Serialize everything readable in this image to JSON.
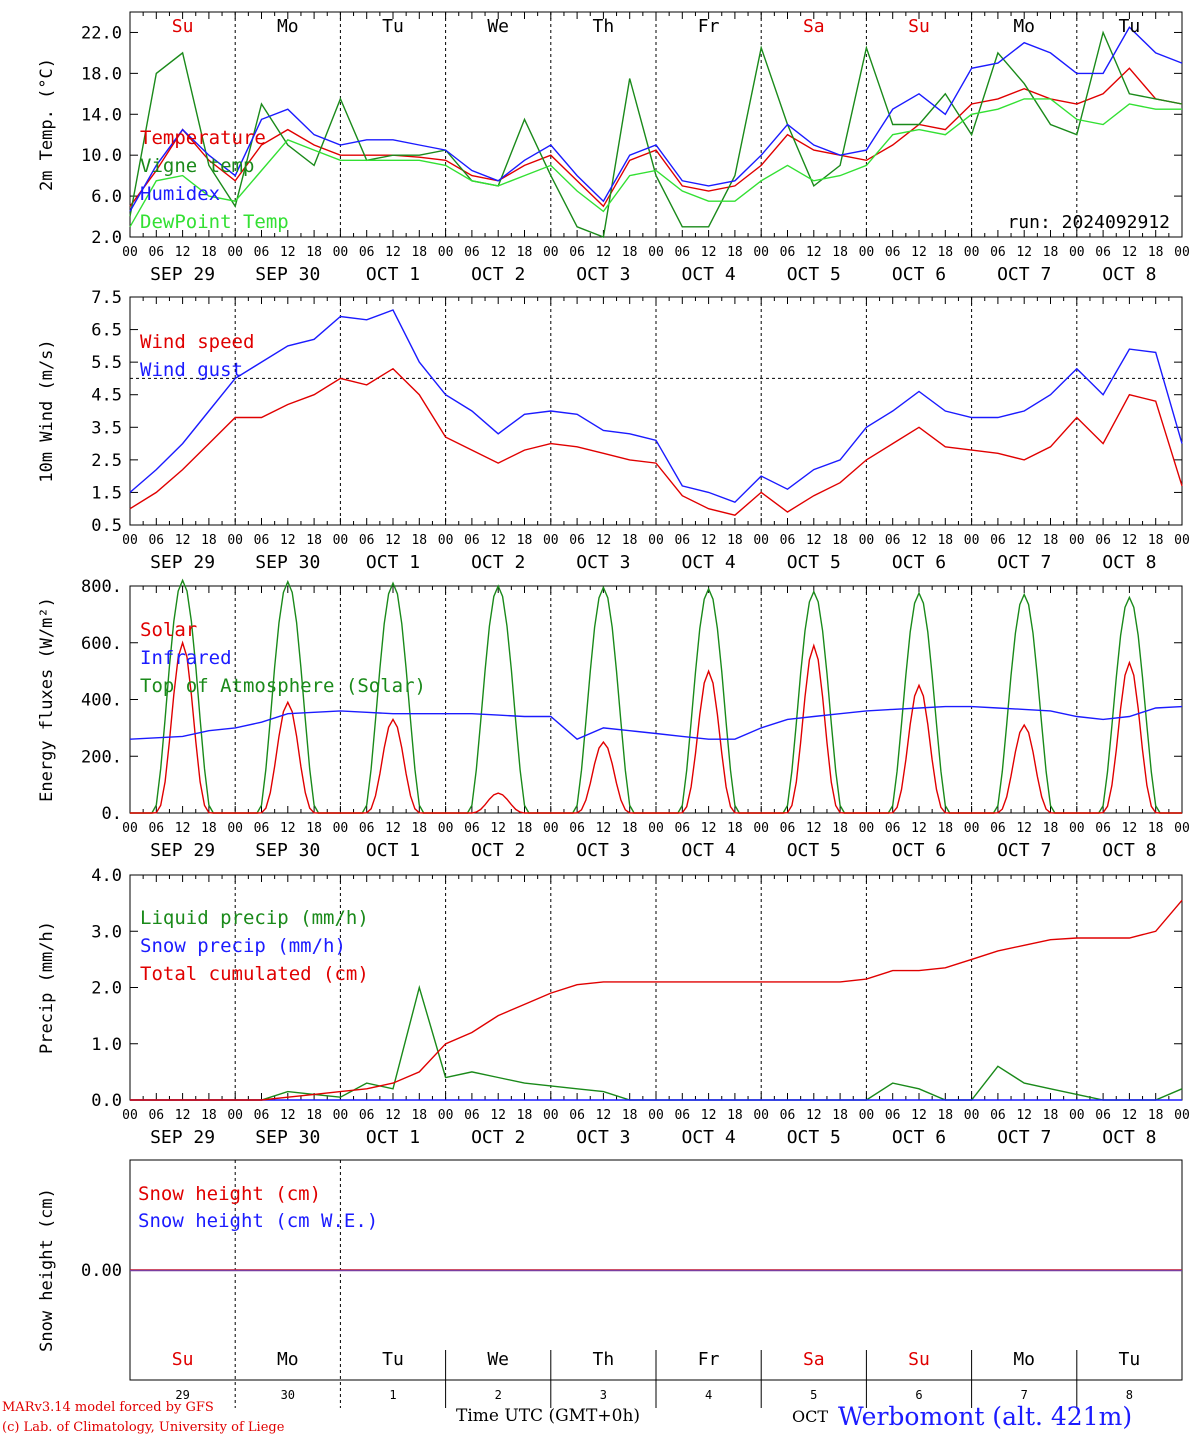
{
  "chart_data": [
    {
      "type": "line",
      "ylabel": "2m Temp. (°C)",
      "ylim": [
        2.0,
        24.0
      ],
      "yticks": [
        "2.0",
        "6.0",
        "10.0",
        "14.0",
        "18.0",
        "22.0"
      ],
      "annotation": "run: 2024092912",
      "day_labels": [
        {
          "text": "Su",
          "color": "#e00000"
        },
        {
          "text": "Mo",
          "color": "#000000"
        },
        {
          "text": "Tu",
          "color": "#000000"
        },
        {
          "text": "We",
          "color": "#000000"
        },
        {
          "text": "Th",
          "color": "#000000"
        },
        {
          "text": "Fr",
          "color": "#000000"
        },
        {
          "text": "Sa",
          "color": "#e00000"
        },
        {
          "text": "Su",
          "color": "#e00000"
        },
        {
          "text": "Mo",
          "color": "#000000"
        },
        {
          "text": "Tu",
          "color": "#000000"
        }
      ],
      "x_hours": [
        0,
        6,
        12,
        18,
        24,
        30,
        36,
        42,
        48,
        54,
        60,
        66,
        72,
        78,
        84,
        90,
        96,
        102,
        108,
        114,
        120,
        126,
        132,
        138,
        144,
        150,
        156,
        162,
        168,
        174,
        180,
        186,
        192,
        198,
        204,
        210,
        216,
        222,
        228,
        234,
        240
      ],
      "series": [
        {
          "name": "Temperature",
          "color": "#e00000",
          "values": [
            5.0,
            8.5,
            12.5,
            9.5,
            7.5,
            11.0,
            12.5,
            11.0,
            10.0,
            10.0,
            10.0,
            9.8,
            9.5,
            8.0,
            7.5,
            9.0,
            10.0,
            7.5,
            5.0,
            9.5,
            10.5,
            7.0,
            6.5,
            7.0,
            9.0,
            12.0,
            10.5,
            10.0,
            9.5,
            11.0,
            13.0,
            12.5,
            15.0,
            15.5,
            16.5,
            15.5,
            15.0,
            16.0,
            18.5,
            15.5,
            15.0
          ]
        },
        {
          "name": "Vigne temp",
          "color": "#1a8a1a",
          "values": [
            4.0,
            18.0,
            20.0,
            9.0,
            5.0,
            15.0,
            11.0,
            9.0,
            15.5,
            9.5,
            10.0,
            10.0,
            10.5,
            7.5,
            7.0,
            13.5,
            8.0,
            3.0,
            2.0,
            17.5,
            8.0,
            3.0,
            3.0,
            8.0,
            20.5,
            13.0,
            7.0,
            9.0,
            20.5,
            13.0,
            13.0,
            16.0,
            12.0,
            20.0,
            17.0,
            13.0,
            12.0,
            22.0,
            16.0,
            15.5,
            15.0
          ]
        },
        {
          "name": "Humidex",
          "color": "#1b1bff",
          "values": [
            4.5,
            9.0,
            12.5,
            10.0,
            8.0,
            13.5,
            14.5,
            12.0,
            11.0,
            11.5,
            11.5,
            11.0,
            10.5,
            8.5,
            7.5,
            9.5,
            11.0,
            8.0,
            5.5,
            10.0,
            11.0,
            7.5,
            7.0,
            7.5,
            10.0,
            13.0,
            11.0,
            10.0,
            10.5,
            14.5,
            16.0,
            14.0,
            18.5,
            19.0,
            21.0,
            20.0,
            18.0,
            18.0,
            22.5,
            20.0,
            19.0
          ]
        },
        {
          "name": "DewPoint Temp",
          "color": "#33e033",
          "values": [
            3.0,
            7.5,
            8.0,
            6.0,
            5.5,
            8.5,
            11.5,
            10.5,
            9.5,
            9.5,
            9.5,
            9.5,
            9.0,
            7.5,
            7.0,
            8.0,
            9.0,
            6.5,
            4.5,
            8.0,
            8.5,
            6.5,
            5.5,
            5.5,
            7.5,
            9.0,
            7.5,
            8.0,
            9.0,
            12.0,
            12.5,
            12.0,
            14.0,
            14.5,
            15.5,
            15.5,
            13.5,
            13.0,
            15.0,
            14.5,
            14.5
          ]
        }
      ],
      "legend_placement": "left"
    },
    {
      "type": "line",
      "ylabel": "10m Wind (m/s)",
      "ylim": [
        0.5,
        7.5
      ],
      "yticks": [
        "0.5",
        "1.5",
        "2.5",
        "3.5",
        "4.5",
        "5.5",
        "6.5",
        "7.5"
      ],
      "reference_line": 5.0,
      "x_hours": [
        0,
        6,
        12,
        18,
        24,
        30,
        36,
        42,
        48,
        54,
        60,
        66,
        72,
        78,
        84,
        90,
        96,
        102,
        108,
        114,
        120,
        126,
        132,
        138,
        144,
        150,
        156,
        162,
        168,
        174,
        180,
        186,
        192,
        198,
        204,
        210,
        216,
        222,
        228,
        234,
        240
      ],
      "series": [
        {
          "name": "Wind speed",
          "color": "#e00000",
          "values": [
            1.0,
            1.5,
            2.2,
            3.0,
            3.8,
            3.8,
            4.2,
            4.5,
            5.0,
            4.8,
            5.3,
            4.5,
            3.2,
            2.8,
            2.4,
            2.8,
            3.0,
            2.9,
            2.7,
            2.5,
            2.4,
            1.4,
            1.0,
            0.8,
            1.5,
            0.9,
            1.4,
            1.8,
            2.5,
            3.0,
            3.5,
            2.9,
            2.8,
            2.7,
            2.5,
            2.9,
            3.8,
            3.0,
            4.5,
            4.3,
            1.7
          ]
        },
        {
          "name": "Wind gust",
          "color": "#1b1bff",
          "values": [
            1.5,
            2.2,
            3.0,
            4.0,
            5.0,
            5.5,
            6.0,
            6.2,
            6.9,
            6.8,
            7.1,
            5.5,
            4.5,
            4.0,
            3.3,
            3.9,
            4.0,
            3.9,
            3.4,
            3.3,
            3.1,
            1.7,
            1.5,
            1.2,
            2.0,
            1.6,
            2.2,
            2.5,
            3.5,
            4.0,
            4.6,
            4.0,
            3.8,
            3.8,
            4.0,
            4.5,
            5.3,
            4.5,
            5.9,
            5.8,
            3.0
          ]
        }
      ],
      "legend_placement": "top-left"
    },
    {
      "type": "line",
      "ylabel": "Energy fluxes (W/m²)",
      "ylim": [
        0,
        800
      ],
      "yticks": [
        "0.",
        "200.",
        "400.",
        "600.",
        "800."
      ],
      "legend_placement": "top-left",
      "series": [
        {
          "name": "Solar",
          "color": "#e00000",
          "daily_peak": [
            600,
            390,
            330,
            70,
            250,
            500,
            590,
            450,
            310,
            530
          ]
        },
        {
          "name": "Infrared",
          "color": "#1b1bff",
          "values": [
            260,
            265,
            270,
            290,
            300,
            320,
            350,
            355,
            360,
            355,
            350,
            350,
            350,
            350,
            345,
            340,
            340,
            260,
            300,
            290,
            280,
            270,
            260,
            260,
            300,
            330,
            340,
            350,
            360,
            365,
            370,
            375,
            375,
            370,
            365,
            360,
            340,
            330,
            340,
            370,
            375
          ]
        },
        {
          "name": "Top of Atmosphere (Solar)",
          "color": "#1a8a1a",
          "daily_peak": [
            820,
            815,
            810,
            800,
            795,
            790,
            780,
            775,
            770,
            760
          ]
        }
      ]
    },
    {
      "type": "line",
      "ylabel": "Precip (mm/h)",
      "ylim": [
        0.0,
        4.0
      ],
      "yticks": [
        "0.0",
        "1.0",
        "2.0",
        "3.0",
        "4.0"
      ],
      "x_hours": [
        0,
        6,
        12,
        18,
        24,
        30,
        36,
        42,
        48,
        54,
        60,
        66,
        72,
        78,
        84,
        90,
        96,
        102,
        108,
        114,
        120,
        126,
        132,
        138,
        144,
        150,
        156,
        162,
        168,
        174,
        180,
        186,
        192,
        198,
        204,
        210,
        216,
        222,
        228,
        234,
        240
      ],
      "series": [
        {
          "name": "Liquid precip (mm/h)",
          "color": "#1a8a1a",
          "values": [
            0,
            0,
            0,
            0,
            0,
            0,
            0.15,
            0.1,
            0.05,
            0.3,
            0.2,
            2.0,
            0.4,
            0.5,
            0.4,
            0.3,
            0.25,
            0.2,
            0.15,
            0.0,
            0,
            0,
            0,
            0,
            0,
            0,
            0,
            0,
            0,
            0.3,
            0.2,
            0,
            0,
            0.6,
            0.3,
            0.2,
            0.1,
            0,
            0,
            0,
            0.2
          ]
        },
        {
          "name": "Snow precip (mm/h)",
          "color": "#1b1bff",
          "values": [
            0,
            0,
            0,
            0,
            0,
            0,
            0,
            0,
            0,
            0,
            0,
            0,
            0,
            0,
            0,
            0,
            0,
            0,
            0,
            0,
            0,
            0,
            0,
            0,
            0,
            0,
            0,
            0,
            0,
            0,
            0,
            0,
            0,
            0,
            0,
            0,
            0,
            0,
            0,
            0,
            0
          ]
        },
        {
          "name": "Total cumulated (cm)",
          "color": "#e00000",
          "values": [
            0,
            0,
            0,
            0,
            0,
            0,
            0.05,
            0.1,
            0.15,
            0.2,
            0.3,
            0.5,
            1.0,
            1.2,
            1.5,
            1.7,
            1.9,
            2.05,
            2.1,
            2.1,
            2.1,
            2.1,
            2.1,
            2.1,
            2.1,
            2.1,
            2.1,
            2.1,
            2.15,
            2.3,
            2.3,
            2.35,
            2.5,
            2.65,
            2.75,
            2.85,
            2.88,
            2.88,
            2.88,
            3.0,
            3.55
          ]
        }
      ],
      "legend_placement": "top-left"
    },
    {
      "type": "line",
      "ylabel": "Snow height (cm)",
      "yticks": [
        "0.00"
      ],
      "series": [
        {
          "name": "Snow height (cm)",
          "color": "#e00000",
          "values": [
            0,
            0
          ]
        },
        {
          "name": "Snow height (cm W.E.)",
          "color": "#1b1bff",
          "values": [
            0,
            0
          ]
        }
      ],
      "day_labels": [
        {
          "text": "Su",
          "color": "#e00000"
        },
        {
          "text": "Mo",
          "color": "#000000"
        },
        {
          "text": "Tu",
          "color": "#000000"
        },
        {
          "text": "We",
          "color": "#000000"
        },
        {
          "text": "Th",
          "color": "#000000"
        },
        {
          "text": "Fr",
          "color": "#000000"
        },
        {
          "text": "Sa",
          "color": "#e00000"
        },
        {
          "text": "Su",
          "color": "#e00000"
        },
        {
          "text": "Mo",
          "color": "#000000"
        },
        {
          "text": "Tu",
          "color": "#000000"
        }
      ],
      "day_numbers": [
        "29",
        "30",
        "1",
        "2",
        "3",
        "4",
        "5",
        "6",
        "7",
        "8"
      ],
      "legend_placement": "top-left"
    }
  ],
  "axis": {
    "hour_labels": [
      "00",
      "06",
      "12",
      "18"
    ],
    "end_label": "00",
    "date_labels": [
      "SEP 29",
      "SEP 30",
      "OCT  1",
      "OCT  2",
      "OCT  3",
      "OCT  4",
      "OCT  5",
      "OCT  6",
      "OCT  7",
      "OCT  8"
    ]
  },
  "footer": {
    "model": "MARv3.14 model forced by GFS",
    "copyright": "(c) Lab. of Climatology, University of Liege",
    "time_label": "Time UTC (GMT+0h)",
    "month_label": "OCT",
    "station": "Werbomont (alt. 421m)"
  }
}
